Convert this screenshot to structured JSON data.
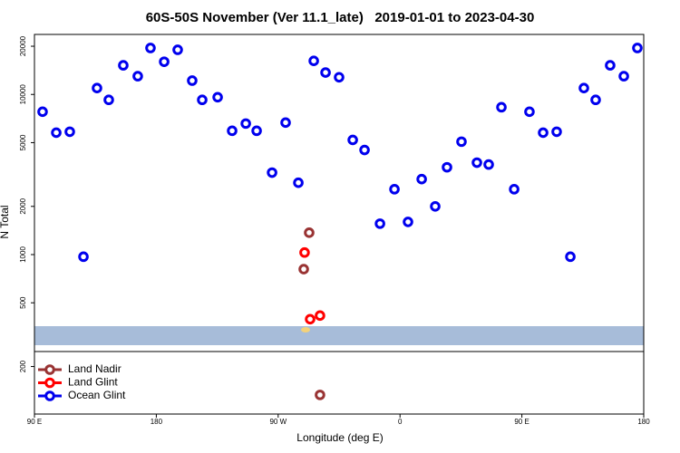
{
  "chart_data": {
    "type": "scatter",
    "title": "60S-50S November (Ver 11.1_late)   2019-01-01 to 2023-04-30",
    "x_label": "Longitude (deg E)",
    "y_label": "N Total",
    "ylog": true,
    "xlim": [
      90,
      540
    ],
    "xticks": [
      {
        "value": 90,
        "label": "90 E"
      },
      180,
      {
        "value": 270,
        "label": "90 W"
      },
      {
        "value": 360,
        "label": "0"
      },
      {
        "value": 450,
        "label": "90 E"
      },
      {
        "value": 540,
        "label": "180"
      }
    ],
    "ylim": [
      101,
      23700
    ],
    "yticks": [
      200,
      500,
      1000,
      2000,
      5000,
      10000,
      20000
    ],
    "legend": "bottom-left",
    "series": [
      {
        "name": "Land Nadir",
        "color": "#993333",
        "x": [
          292.9,
          288.9,
          300.9
        ],
        "values": [
          1370,
          811,
          133
        ]
      },
      {
        "name": "Land Glint",
        "color": "#ff0000",
        "x": [
          289.5,
          293.6,
          300.9
        ],
        "values": [
          1030,
          395,
          416
        ]
      },
      {
        "name": "Ocean Glint",
        "color": "#0000ee",
        "x": [
          96.0,
          106.1,
          116.1,
          126.2,
          136.2,
          144.9,
          155.6,
          166.3,
          175.7,
          185.8,
          195.8,
          206.5,
          213.9,
          225.3,
          236.0,
          246.1,
          254.1,
          265.5,
          275.5,
          284.9,
          296.3,
          305.0,
          315.0,
          325.1,
          333.8,
          345.2,
          355.9,
          365.9,
          376.0,
          386.0,
          394.7,
          405.4,
          416.8,
          425.5,
          434.9,
          444.3,
          455.6,
          465.7,
          475.7,
          485.8,
          495.8,
          504.5,
          515.2,
          525.3,
          535.3
        ],
        "values": [
          7800,
          5770,
          5850,
          970,
          10960,
          9250,
          15200,
          13000,
          19500,
          16000,
          19000,
          12200,
          9250,
          9610,
          5930,
          6580,
          5930,
          3250,
          6670,
          2810,
          16200,
          13700,
          12800,
          5200,
          4500,
          1560,
          2560,
          1600,
          2960,
          2000,
          3510,
          5070,
          3750,
          3650,
          8320,
          2560,
          7800,
          5770,
          5850,
          970,
          10960,
          9250,
          15200,
          13000,
          19500
        ]
      }
    ]
  }
}
